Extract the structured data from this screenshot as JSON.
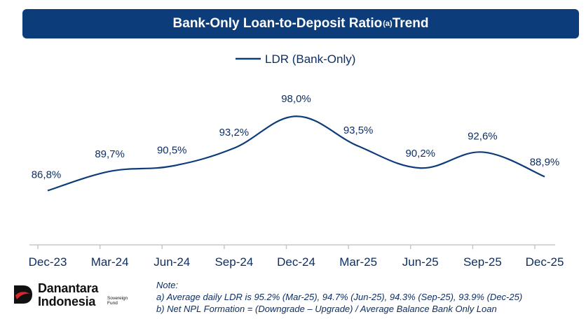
{
  "header": {
    "title": "Bank-Only Loan-to-Deposit Ratio",
    "title_superscript": "(a)",
    "title_suffix": " Trend"
  },
  "chart_data": {
    "type": "line",
    "categories": [
      "Dec-23",
      "Mar-24",
      "Jun-24",
      "Sep-24",
      "Dec-24",
      "Mar-25",
      "Jun-25",
      "Sep-25",
      "Dec-25"
    ],
    "series": [
      {
        "name": "LDR (Bank-Only)",
        "values": [
          86.8,
          89.7,
          90.5,
          93.2,
          98.0,
          93.5,
          90.2,
          92.6,
          88.9
        ],
        "labels": [
          "86,8%",
          "89,7%",
          "90,5%",
          "93,2%",
          "98,0%",
          "93,5%",
          "90,2%",
          "92,6%",
          "88,9%"
        ],
        "color": "#0d3c7a"
      }
    ],
    "legend_position": "top-center",
    "grid": false,
    "ylim": [
      82,
      99.5
    ]
  },
  "footer": {
    "brand_line1": "Danantara",
    "brand_line2": "Indonesia",
    "brand_tag": "Sovereign Fund",
    "note_title": "Note:",
    "note_a": "a) Average daily LDR is 95.2% (Mar-25), 94.7% (Jun-25), 94.3% (Sep-25), 93.9% (Dec-25)",
    "note_b": "b) Net NPL Formation = (Downgrade – Upgrade) / Average Balance Bank Only Loan"
  },
  "colors": {
    "primary": "#0d3c7a",
    "logo_red": "#d8262e",
    "axis": "#c7c7c7"
  }
}
